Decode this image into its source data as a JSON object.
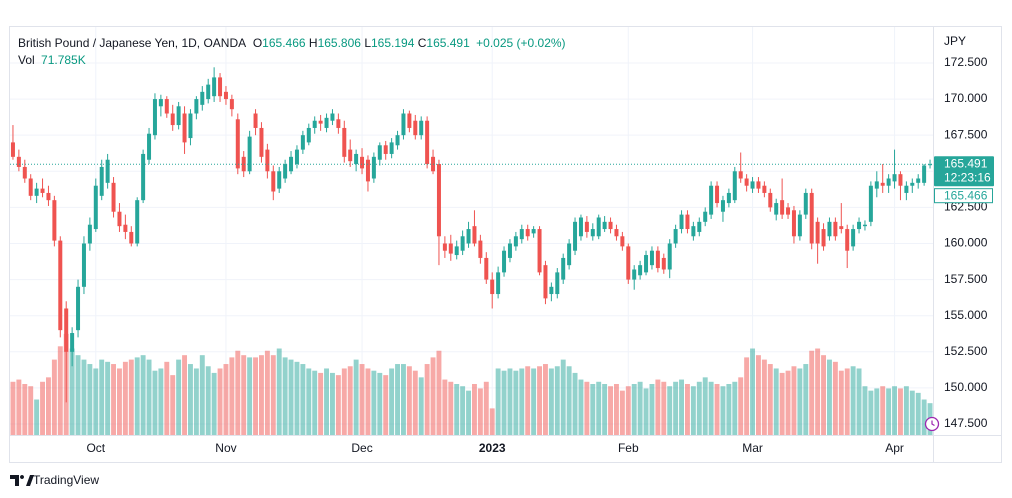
{
  "chart_data": {
    "type": "candlestick",
    "title": "British Pound / Japanese Yen, 1D, OANDA",
    "header": {
      "open_label": "O",
      "open": 165.466,
      "high_label": "H",
      "high": 165.806,
      "low_label": "L",
      "low": 165.194,
      "close_label": "C",
      "close": 165.491,
      "change": "+0.025 (+0.02%)"
    },
    "volume_label": "Vol",
    "volume_text": "71.785K",
    "currency": "JPY",
    "countdown": "12:23:16",
    "prev_tag": "165.466",
    "brand": "TradingView",
    "up_color": "#26a69a",
    "down_color": "#ef5350",
    "ylim": [
      146.74,
      174.99
    ],
    "yticks": [
      {
        "value": 172.5,
        "label": "172.500"
      },
      {
        "value": 170,
        "label": "170.000"
      },
      {
        "value": 167.5,
        "label": "167.500"
      },
      {
        "value": 165,
        "label": "165.000"
      },
      {
        "value": 162.5,
        "label": "162.500"
      },
      {
        "value": 160,
        "label": "160.000"
      },
      {
        "value": 157.5,
        "label": "157.500"
      },
      {
        "value": 155,
        "label": "155.000"
      },
      {
        "value": 152.5,
        "label": "152.500"
      },
      {
        "value": 150,
        "label": "150.000"
      },
      {
        "value": 147.5,
        "label": "147.500"
      }
    ],
    "vlim": [
      0,
      230
    ],
    "grid": true,
    "categories": [
      null,
      null,
      null,
      null,
      null,
      null,
      null,
      null,
      null,
      null,
      null,
      null,
      null,
      null,
      "Oct",
      null,
      null,
      null,
      null,
      null,
      null,
      null,
      null,
      null,
      null,
      null,
      null,
      null,
      null,
      null,
      null,
      null,
      null,
      null,
      null,
      null,
      "Nov",
      null,
      null,
      null,
      null,
      null,
      null,
      null,
      null,
      null,
      null,
      null,
      null,
      null,
      null,
      null,
      null,
      null,
      null,
      null,
      null,
      null,
      null,
      "Dec",
      null,
      null,
      null,
      null,
      null,
      null,
      null,
      null,
      null,
      null,
      null,
      null,
      null,
      null,
      null,
      null,
      null,
      null,
      null,
      null,
      null,
      "2023",
      null,
      null,
      null,
      null,
      null,
      null,
      null,
      null,
      null,
      null,
      null,
      null,
      null,
      null,
      null,
      null,
      null,
      null,
      null,
      null,
      null,
      null,
      "Feb",
      null,
      null,
      null,
      null,
      null,
      null,
      null,
      null,
      null,
      null,
      null,
      null,
      null,
      null,
      null,
      null,
      null,
      null,
      null,
      null,
      "Mar",
      null,
      null,
      null,
      null,
      null,
      null,
      null,
      null,
      null,
      null,
      null,
      null,
      null,
      null,
      null,
      null,
      null,
      null,
      null,
      null,
      null,
      null,
      null,
      "Apr",
      null,
      null,
      null,
      null,
      null,
      null
    ],
    "ohlc": [
      [
        167.0,
        168.2,
        165.8,
        166.0
      ],
      [
        166.0,
        166.5,
        165.0,
        165.3
      ],
      [
        165.3,
        165.8,
        164.2,
        164.5
      ],
      [
        164.5,
        164.8,
        163.0,
        163.3
      ],
      [
        163.3,
        164.2,
        162.8,
        163.8
      ],
      [
        163.8,
        164.5,
        163.2,
        163.5
      ],
      [
        163.5,
        164.0,
        162.6,
        163.0
      ],
      [
        163.0,
        163.3,
        159.8,
        160.2
      ],
      [
        160.2,
        160.5,
        153.5,
        154.0
      ],
      [
        155.5,
        156.0,
        149.0,
        152.5
      ],
      [
        152.5,
        154.2,
        151.5,
        153.8
      ],
      [
        154.0,
        157.5,
        153.5,
        157.0
      ],
      [
        157.0,
        160.5,
        156.5,
        160.0
      ],
      [
        160.0,
        161.8,
        159.5,
        161.3
      ],
      [
        161.0,
        164.5,
        160.8,
        164.0
      ],
      [
        163.3,
        165.8,
        163.0,
        165.3
      ],
      [
        164.2,
        166.2,
        163.8,
        165.8
      ],
      [
        164.2,
        164.6,
        161.8,
        162.2
      ],
      [
        162.2,
        162.8,
        160.8,
        161.2
      ],
      [
        161.3,
        162.0,
        160.3,
        160.8
      ],
      [
        160.8,
        161.2,
        159.8,
        160.0
      ],
      [
        160.0,
        163.2,
        159.8,
        163.0
      ],
      [
        163.0,
        166.5,
        162.8,
        166.2
      ],
      [
        165.8,
        168.0,
        165.5,
        167.6
      ],
      [
        167.5,
        170.4,
        167.2,
        170.0
      ],
      [
        169.5,
        170.3,
        168.8,
        170.0
      ],
      [
        170.0,
        170.2,
        168.7,
        169.0
      ],
      [
        169.0,
        169.6,
        167.8,
        168.2
      ],
      [
        168.2,
        169.8,
        167.9,
        169.5
      ],
      [
        169.0,
        169.5,
        166.2,
        167.0
      ],
      [
        167.3,
        169.3,
        166.8,
        169.0
      ],
      [
        169.0,
        170.2,
        168.6,
        170.0
      ],
      [
        169.6,
        170.9,
        169.2,
        170.5
      ],
      [
        170.0,
        171.4,
        169.7,
        171.0
      ],
      [
        170.2,
        172.2,
        169.8,
        171.5
      ],
      [
        171.5,
        171.8,
        169.8,
        170.2
      ],
      [
        170.5,
        170.9,
        169.6,
        170.0
      ],
      [
        170.0,
        170.3,
        168.8,
        169.3
      ],
      [
        168.6,
        169.0,
        164.8,
        165.2
      ],
      [
        166.0,
        166.4,
        164.6,
        165.0
      ],
      [
        165.0,
        167.8,
        164.8,
        167.4
      ],
      [
        169.0,
        169.3,
        167.5,
        168.0
      ],
      [
        168.0,
        168.4,
        165.6,
        166.0
      ],
      [
        166.5,
        166.9,
        164.5,
        165.0
      ],
      [
        165.0,
        165.4,
        163.0,
        163.6
      ],
      [
        163.8,
        165.3,
        163.5,
        165.0
      ],
      [
        164.5,
        165.8,
        164.2,
        165.5
      ],
      [
        165.0,
        166.4,
        164.8,
        166.0
      ],
      [
        165.5,
        166.8,
        165.2,
        166.5
      ],
      [
        166.5,
        167.8,
        166.2,
        167.5
      ],
      [
        167.0,
        168.3,
        166.8,
        168.0
      ],
      [
        168.0,
        168.8,
        167.6,
        168.5
      ],
      [
        168.5,
        168.9,
        167.8,
        168.3
      ],
      [
        168.0,
        169.0,
        167.7,
        168.7
      ],
      [
        168.5,
        169.3,
        168.2,
        169.0
      ],
      [
        168.6,
        169.0,
        167.6,
        168.0
      ],
      [
        168.0,
        168.5,
        165.6,
        166.0
      ],
      [
        166.5,
        167.2,
        165.3,
        165.7
      ],
      [
        165.5,
        166.5,
        165.0,
        166.2
      ],
      [
        166.0,
        166.6,
        164.8,
        165.2
      ],
      [
        165.8,
        166.1,
        163.6,
        164.3
      ],
      [
        164.5,
        166.3,
        164.2,
        166.0
      ],
      [
        165.8,
        167.0,
        165.4,
        166.8
      ],
      [
        166.8,
        167.1,
        165.8,
        166.2
      ],
      [
        166.2,
        167.3,
        165.9,
        167.0
      ],
      [
        166.8,
        167.8,
        166.5,
        167.5
      ],
      [
        167.5,
        169.3,
        167.2,
        169.0
      ],
      [
        169.0,
        169.2,
        167.7,
        168.0
      ],
      [
        168.5,
        168.9,
        167.2,
        167.5
      ],
      [
        167.5,
        168.8,
        167.2,
        168.5
      ],
      [
        168.5,
        168.8,
        165.2,
        165.5
      ],
      [
        166.0,
        166.5,
        164.8,
        165.0
      ],
      [
        165.5,
        165.8,
        158.5,
        160.5
      ],
      [
        160.0,
        160.5,
        159.0,
        159.5
      ],
      [
        160.0,
        160.6,
        158.8,
        159.3
      ],
      [
        159.2,
        160.2,
        158.9,
        159.8
      ],
      [
        159.5,
        160.9,
        159.2,
        160.5
      ],
      [
        160.0,
        161.5,
        159.7,
        161.0
      ],
      [
        161.2,
        162.3,
        159.8,
        160.0
      ],
      [
        160.2,
        160.6,
        158.6,
        159.0
      ],
      [
        159.0,
        159.4,
        157.2,
        157.5
      ],
      [
        157.5,
        158.0,
        155.5,
        156.5
      ],
      [
        156.5,
        158.4,
        156.2,
        158.0
      ],
      [
        158.0,
        159.8,
        157.7,
        159.5
      ],
      [
        159.0,
        160.3,
        158.7,
        160.0
      ],
      [
        159.8,
        160.8,
        159.5,
        160.5
      ],
      [
        160.3,
        161.3,
        160.0,
        161.0
      ],
      [
        161.0,
        161.3,
        160.2,
        160.5
      ],
      [
        160.7,
        161.2,
        160.4,
        161.0
      ],
      [
        161.0,
        161.2,
        157.8,
        158.0
      ],
      [
        158.5,
        158.8,
        155.8,
        156.2
      ],
      [
        156.5,
        157.3,
        156.0,
        157.0
      ],
      [
        156.5,
        158.3,
        156.2,
        158.0
      ],
      [
        157.5,
        159.3,
        157.2,
        159.0
      ],
      [
        158.5,
        160.3,
        158.2,
        160.0
      ],
      [
        159.5,
        161.8,
        159.2,
        161.5
      ],
      [
        160.5,
        162.0,
        160.2,
        161.8
      ],
      [
        161.5,
        161.9,
        160.4,
        160.8
      ],
      [
        160.5,
        161.4,
        160.2,
        161.0
      ],
      [
        160.5,
        162.0,
        160.3,
        161.8
      ],
      [
        161.0,
        161.9,
        160.8,
        161.5
      ],
      [
        161.5,
        161.8,
        160.7,
        161.0
      ],
      [
        161.0,
        161.3,
        160.2,
        160.5
      ],
      [
        160.5,
        160.8,
        159.5,
        159.8
      ],
      [
        159.8,
        160.0,
        157.2,
        157.5
      ],
      [
        157.5,
        158.5,
        156.8,
        158.2
      ],
      [
        157.8,
        158.8,
        157.5,
        158.5
      ],
      [
        158.0,
        159.5,
        157.8,
        159.2
      ],
      [
        158.5,
        159.8,
        158.2,
        159.5
      ],
      [
        159.5,
        159.8,
        158.0,
        158.3
      ],
      [
        159.0,
        159.3,
        157.9,
        158.2
      ],
      [
        158.2,
        160.3,
        157.6,
        160.0
      ],
      [
        160.0,
        161.3,
        159.7,
        161.0
      ],
      [
        161.0,
        162.3,
        160.7,
        162.0
      ],
      [
        162.0,
        162.3,
        160.7,
        161.0
      ],
      [
        160.5,
        161.5,
        160.2,
        161.2
      ],
      [
        160.8,
        161.8,
        160.5,
        161.5
      ],
      [
        161.5,
        162.5,
        161.2,
        162.2
      ],
      [
        162.0,
        164.3,
        161.7,
        164.0
      ],
      [
        164.0,
        164.3,
        162.5,
        162.8
      ],
      [
        162.2,
        163.3,
        161.5,
        163.0
      ],
      [
        162.8,
        163.8,
        162.5,
        163.5
      ],
      [
        163.0,
        165.3,
        162.8,
        165.0
      ],
      [
        165.0,
        166.3,
        164.2,
        164.5
      ],
      [
        164.5,
        164.8,
        163.6,
        164.0
      ],
      [
        163.8,
        164.6,
        163.5,
        164.3
      ],
      [
        164.3,
        164.6,
        163.5,
        163.8
      ],
      [
        164.0,
        164.3,
        163.2,
        163.5
      ],
      [
        163.5,
        163.8,
        162.2,
        162.5
      ],
      [
        162.0,
        163.1,
        161.6,
        162.8
      ],
      [
        163.0,
        164.5,
        161.7,
        162.0
      ],
      [
        162.5,
        162.8,
        161.7,
        162.0
      ],
      [
        162.3,
        162.6,
        160.0,
        160.5
      ],
      [
        160.5,
        162.3,
        160.2,
        162.0
      ],
      [
        162.0,
        163.8,
        161.7,
        163.5
      ],
      [
        163.5,
        163.8,
        159.6,
        160.0
      ],
      [
        161.5,
        161.8,
        158.6,
        160.0
      ],
      [
        161.0,
        161.4,
        159.5,
        159.8
      ],
      [
        160.5,
        161.8,
        160.2,
        161.5
      ],
      [
        161.5,
        161.8,
        160.2,
        160.5
      ],
      [
        161.2,
        162.8,
        160.7,
        161.0
      ],
      [
        161.0,
        161.3,
        158.3,
        159.5
      ],
      [
        159.8,
        161.3,
        159.5,
        161.0
      ],
      [
        161.0,
        161.8,
        160.7,
        161.5
      ],
      [
        161.2,
        161.6,
        160.9,
        161.3
      ],
      [
        161.5,
        164.3,
        161.2,
        164.0
      ],
      [
        163.8,
        165.0,
        163.2,
        164.3
      ],
      [
        164.2,
        165.5,
        163.5,
        164.0
      ],
      [
        164.0,
        164.8,
        163.5,
        164.5
      ],
      [
        164.3,
        166.5,
        163.8,
        164.8
      ],
      [
        164.8,
        165.0,
        163.0,
        164.0
      ],
      [
        163.5,
        164.3,
        163.0,
        164.0
      ],
      [
        164.0,
        164.5,
        163.5,
        164.2
      ],
      [
        164.2,
        164.8,
        163.8,
        164.5
      ],
      [
        164.2,
        165.5,
        164.0,
        165.4
      ],
      [
        165.466,
        165.806,
        165.194,
        165.491
      ]
    ],
    "volume": [
      120,
      125,
      115,
      110,
      80,
      120,
      130,
      170,
      200,
      228,
      195,
      180,
      170,
      160,
      150,
      170,
      165,
      160,
      150,
      165,
      170,
      175,
      180,
      170,
      145,
      150,
      165,
      135,
      170,
      180,
      160,
      150,
      180,
      155,
      140,
      150,
      160,
      175,
      190,
      180,
      175,
      175,
      180,
      190,
      180,
      195,
      175,
      170,
      165,
      160,
      150,
      145,
      140,
      150,
      140,
      135,
      150,
      155,
      170,
      160,
      150,
      145,
      140,
      135,
      150,
      160,
      160,
      155,
      145,
      130,
      160,
      175,
      190,
      125,
      120,
      115,
      110,
      100,
      115,
      105,
      120,
      60,
      150,
      145,
      150,
      145,
      150,
      155,
      150,
      155,
      160,
      150,
      155,
      170,
      155,
      140,
      125,
      120,
      115,
      120,
      115,
      110,
      115,
      100,
      110,
      115,
      120,
      105,
      115,
      125,
      120,
      110,
      120,
      125,
      115,
      110,
      120,
      130,
      120,
      115,
      110,
      115,
      120,
      130,
      175,
      195,
      180,
      170,
      160,
      150,
      140,
      145,
      155,
      150,
      160,
      190,
      195,
      180,
      170,
      165,
      145,
      150,
      155,
      150,
      110,
      100,
      105,
      110,
      105,
      110,
      105,
      110,
      100,
      95,
      80,
      71.785
    ]
  }
}
